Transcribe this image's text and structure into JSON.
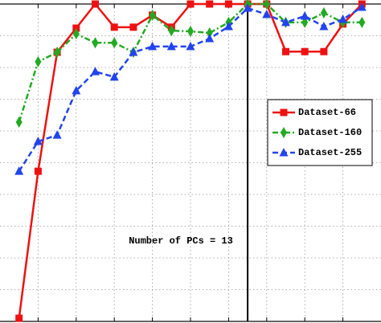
{
  "chart_data": {
    "type": "line",
    "x": [
      1,
      2,
      3,
      4,
      5,
      6,
      7,
      8,
      9,
      10,
      11,
      12,
      13,
      14,
      15,
      16,
      17,
      18,
      19
    ],
    "xlim": [
      0,
      20
    ],
    "xticks": [
      2,
      4,
      6,
      8,
      10,
      12,
      14,
      16,
      18
    ],
    "ylim": [
      0,
      10
    ],
    "yticks": [
      1,
      2,
      3,
      4,
      5,
      6,
      7,
      8,
      9
    ],
    "grid": true,
    "legend": "right",
    "vline": 13,
    "annotation": "Number of PCs = 13",
    "series": [
      {
        "name": "Dataset-66",
        "color": "#ee1111",
        "marker": "square",
        "dash": "solid",
        "values": [
          0.1,
          4.73,
          8.48,
          9.24,
          10,
          9.27,
          9.27,
          9.65,
          9.27,
          10,
          10,
          10,
          10,
          10,
          8.5,
          8.5,
          8.5,
          9.37,
          10
        ]
      },
      {
        "name": "Dataset-160",
        "color": "#22aa22",
        "marker": "diamond",
        "dash": "dashdot",
        "values": [
          6.28,
          8.18,
          8.48,
          9.06,
          8.78,
          8.78,
          8.48,
          9.65,
          9.16,
          9.14,
          9.09,
          9.42,
          10,
          10,
          9.42,
          9.42,
          9.72,
          9.42,
          9.42
        ]
      },
      {
        "name": "Dataset-255",
        "color": "#2244ee",
        "marker": "triangle",
        "dash": "dashed",
        "values": [
          4.73,
          5.67,
          5.87,
          7.27,
          7.87,
          7.7,
          8.48,
          8.66,
          8.66,
          8.66,
          8.91,
          9.29,
          9.87,
          9.67,
          9.42,
          9.62,
          9.29,
          9.52,
          9.9
        ]
      }
    ]
  }
}
